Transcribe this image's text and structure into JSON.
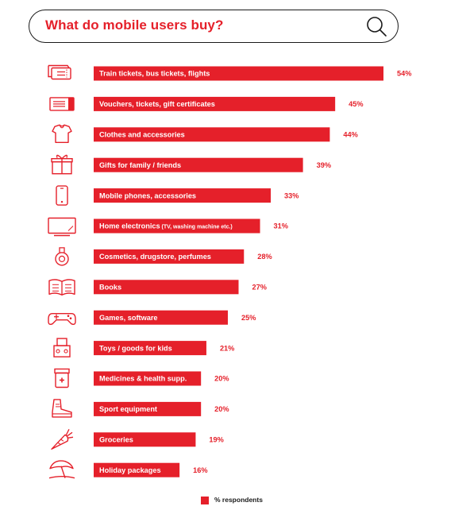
{
  "header": {
    "title": "What do mobile users buy?",
    "search_icon": "search-icon"
  },
  "colors": {
    "accent": "#e5202a",
    "text_dark": "#1a1a1a"
  },
  "chart_data": {
    "type": "bar",
    "orientation": "horizontal",
    "title": "What do mobile users buy?",
    "categories": [
      "Train tickets, bus tickets, flights",
      "Vouchers, tickets, gift certificates",
      "Clothes and accessories",
      "Gifts for family / friends",
      "Mobile phones, accessories",
      "Home electronics (TV, washing machine etc.)",
      "Cosmetics, drugstore, perfumes",
      "Books",
      "Games, software",
      "Toys / goods for kids",
      "Medicines & health supp.",
      "Sport equipment",
      "Groceries",
      "Holiday packages"
    ],
    "value_labels": [
      "54%",
      "45%",
      "44%",
      "39%",
      "33%",
      "31%",
      "28%",
      "27%",
      "25%",
      "21%",
      "20%",
      "20%",
      "19%",
      "16%"
    ],
    "icons": [
      "train-ticket-icon",
      "voucher-icon",
      "clothes-icon",
      "gift-icon",
      "mobile-phone-icon",
      "tv-icon",
      "cosmetics-icon",
      "book-icon",
      "gamepad-icon",
      "toys-icon",
      "medicine-icon",
      "sport-shoe-icon",
      "carrot-icon",
      "beach-umbrella-icon"
    ],
    "series": [
      {
        "name": "% respondents",
        "color": "#e5202a",
        "values": [
          54,
          45,
          44,
          39,
          33,
          31,
          28,
          27,
          25,
          21,
          20,
          20,
          19,
          16
        ]
      }
    ],
    "legend": "bottom-center",
    "grid": false
  }
}
